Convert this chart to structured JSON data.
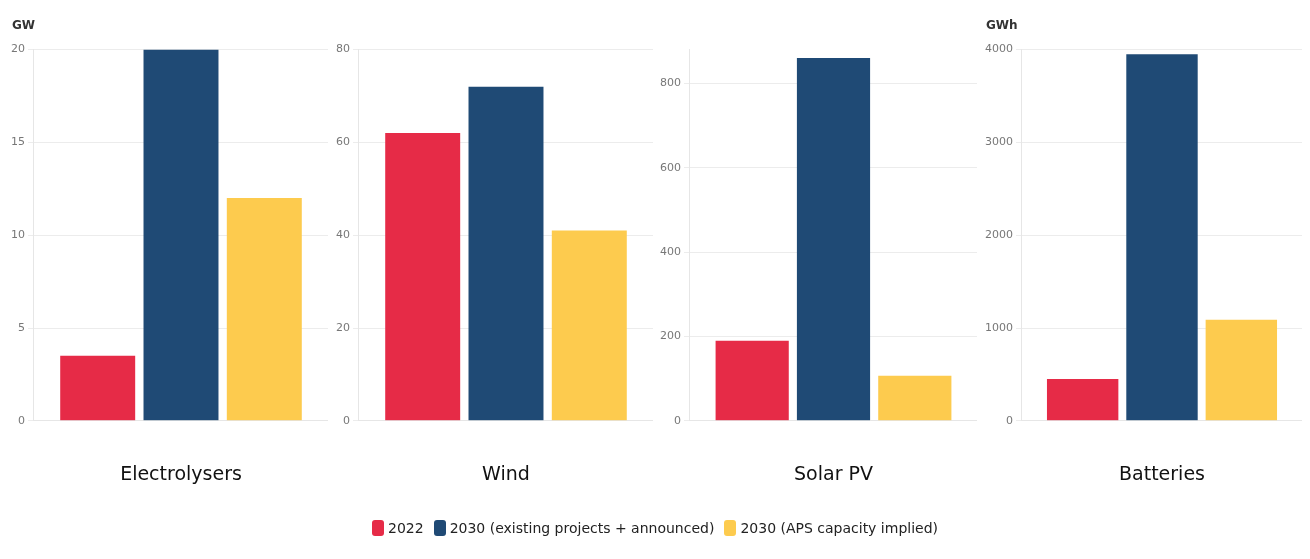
{
  "chart_data": [
    {
      "type": "bar",
      "categories": [
        null
      ],
      "xlabel": "Electrolysers",
      "ylabel": "GW",
      "ylim": [
        0,
        20
      ],
      "yticks": [
        0,
        5,
        10,
        15,
        20
      ],
      "grid": "y",
      "legend": "bottom",
      "series": [
        {
          "name": "2022",
          "color": "#e62b47",
          "values": [
            3.5
          ]
        },
        {
          "name": "2030 (existing projects + announced)",
          "color": "#1f4a75",
          "values": [
            20
          ]
        },
        {
          "name": "2030 (APS capacity implied)",
          "color": "#fdcb4e",
          "values": [
            12
          ]
        }
      ]
    },
    {
      "type": "bar",
      "categories": [
        null
      ],
      "xlabel": "Wind",
      "ylim": [
        0,
        80
      ],
      "yticks": [
        0,
        20,
        40,
        60,
        80
      ],
      "grid": "y",
      "series": [
        {
          "color": "#e62b47",
          "values": [
            62
          ]
        },
        {
          "color": "#1f4a75",
          "values": [
            72
          ]
        },
        {
          "color": "#fdcb4e",
          "values": [
            41
          ]
        }
      ]
    },
    {
      "type": "bar",
      "categories": [
        null
      ],
      "xlabel": "Solar PV",
      "ylim": [
        0,
        880
      ],
      "yticks": [
        0,
        200,
        400,
        600,
        800
      ],
      "grid": "y",
      "series": [
        {
          "color": "#e62b47",
          "values": [
            190
          ]
        },
        {
          "color": "#1f4a75",
          "values": [
            860
          ]
        },
        {
          "color": "#fdcb4e",
          "values": [
            107
          ]
        }
      ]
    },
    {
      "type": "bar",
      "categories": [
        null
      ],
      "xlabel": "Batteries",
      "ylabel": "GWh",
      "ylim": [
        0,
        4000
      ],
      "yticks": [
        0,
        1000,
        2000,
        3000,
        4000
      ],
      "grid": "y",
      "series": [
        {
          "color": "#e62b47",
          "values": [
            450
          ]
        },
        {
          "color": "#1f4a75",
          "values": [
            3950
          ]
        },
        {
          "color": "#fdcb4e",
          "values": [
            1090
          ]
        }
      ]
    }
  ]
}
